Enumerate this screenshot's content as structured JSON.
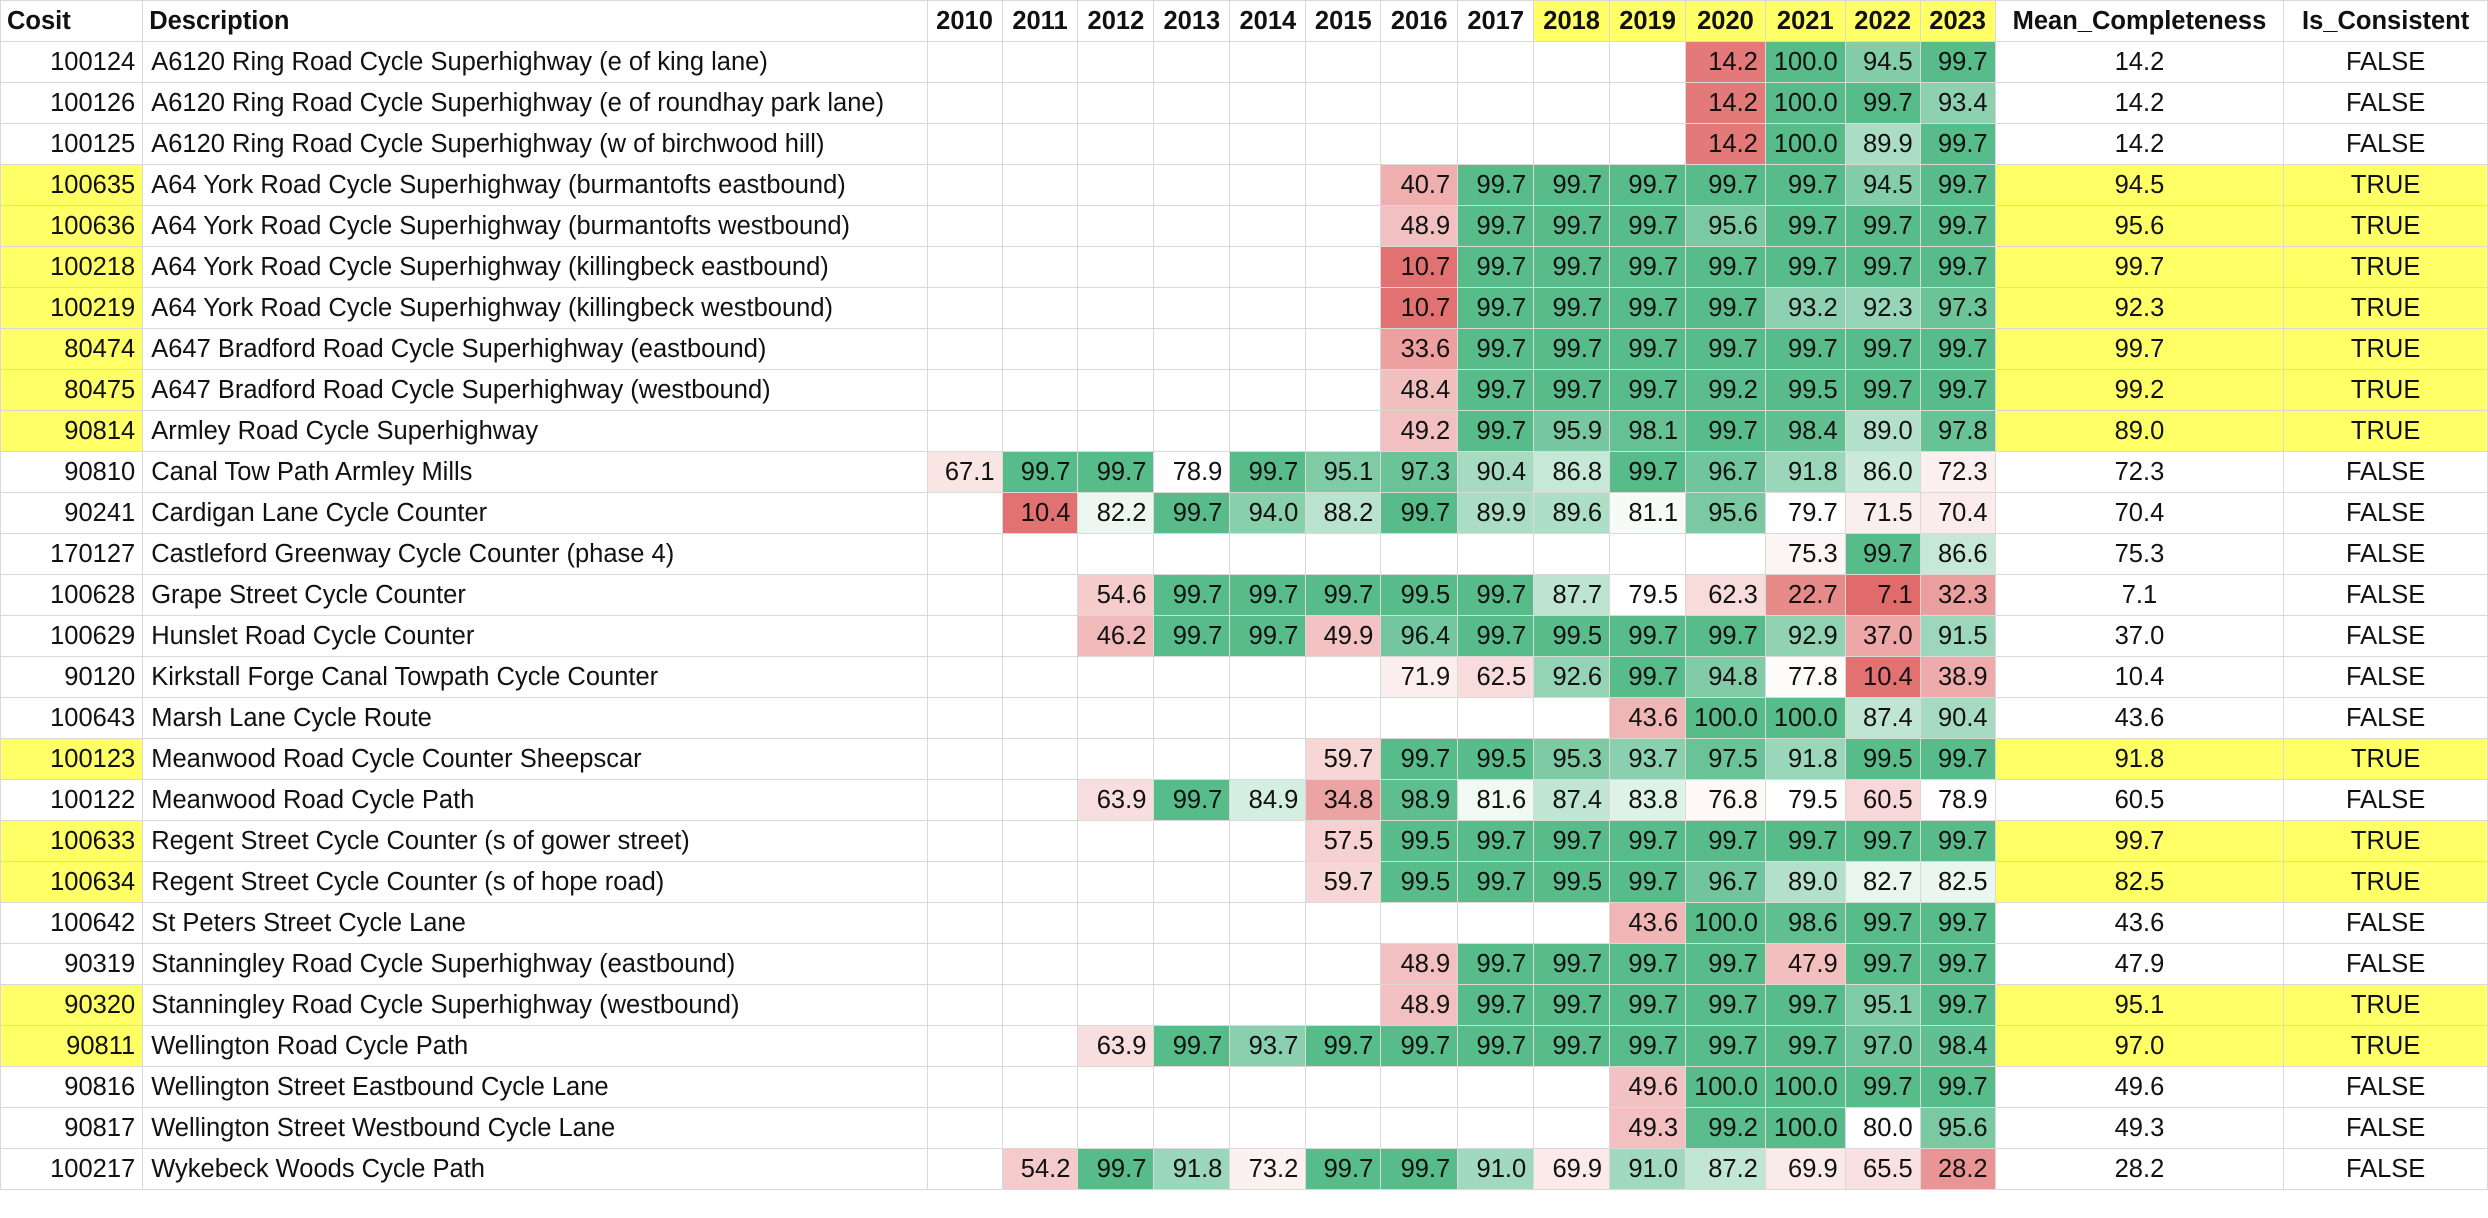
{
  "headers": [
    "Cosit",
    "Description",
    "2010",
    "2011",
    "2012",
    "2013",
    "2014",
    "2015",
    "2016",
    "2017",
    "2018",
    "2019",
    "2020",
    "2021",
    "2022",
    "2023",
    "Mean_Completeness",
    "Is_Consistent"
  ],
  "highlighted_years": [
    "2018",
    "2019",
    "2020",
    "2021",
    "2022",
    "2023"
  ],
  "colors": {
    "highlight_yellow": "#ffff66",
    "scale_low_red": "#e06666",
    "scale_mid_white": "#ffffff",
    "scale_high_green": "#57bb8a"
  },
  "rows": [
    {
      "cosit": "100124",
      "desc": "A6120 Ring Road Cycle Superhighway (e of king lane)",
      "years": [
        "",
        "",
        "",
        "",
        "",
        "",
        "",
        "",
        "",
        "",
        "14.2",
        "100.0",
        "94.5",
        "99.7"
      ],
      "mean": "14.2",
      "consistent": "FALSE"
    },
    {
      "cosit": "100126",
      "desc": "A6120 Ring Road Cycle Superhighway (e of roundhay park lane)",
      "years": [
        "",
        "",
        "",
        "",
        "",
        "",
        "",
        "",
        "",
        "",
        "14.2",
        "100.0",
        "99.7",
        "93.4"
      ],
      "mean": "14.2",
      "consistent": "FALSE"
    },
    {
      "cosit": "100125",
      "desc": "A6120 Ring Road Cycle Superhighway (w of birchwood hill)",
      "years": [
        "",
        "",
        "",
        "",
        "",
        "",
        "",
        "",
        "",
        "",
        "14.2",
        "100.0",
        "89.9",
        "99.7"
      ],
      "mean": "14.2",
      "consistent": "FALSE"
    },
    {
      "cosit": "100635",
      "desc": "A64 York Road Cycle Superhighway (burmantofts eastbound)",
      "years": [
        "",
        "",
        "",
        "",
        "",
        "",
        "40.7",
        "99.7",
        "99.7",
        "99.7",
        "99.7",
        "99.7",
        "94.5",
        "99.7"
      ],
      "mean": "94.5",
      "consistent": "TRUE"
    },
    {
      "cosit": "100636",
      "desc": "A64 York Road Cycle Superhighway (burmantofts westbound)",
      "years": [
        "",
        "",
        "",
        "",
        "",
        "",
        "48.9",
        "99.7",
        "99.7",
        "99.7",
        "95.6",
        "99.7",
        "99.7",
        "99.7"
      ],
      "mean": "95.6",
      "consistent": "TRUE"
    },
    {
      "cosit": "100218",
      "desc": "A64 York Road Cycle Superhighway (killingbeck eastbound)",
      "years": [
        "",
        "",
        "",
        "",
        "",
        "",
        "10.7",
        "99.7",
        "99.7",
        "99.7",
        "99.7",
        "99.7",
        "99.7",
        "99.7"
      ],
      "mean": "99.7",
      "consistent": "TRUE"
    },
    {
      "cosit": "100219",
      "desc": "A64 York Road Cycle Superhighway (killingbeck westbound)",
      "years": [
        "",
        "",
        "",
        "",
        "",
        "",
        "10.7",
        "99.7",
        "99.7",
        "99.7",
        "99.7",
        "93.2",
        "92.3",
        "97.3"
      ],
      "mean": "92.3",
      "consistent": "TRUE"
    },
    {
      "cosit": "80474",
      "desc": "A647 Bradford Road Cycle Superhighway (eastbound)",
      "years": [
        "",
        "",
        "",
        "",
        "",
        "",
        "33.6",
        "99.7",
        "99.7",
        "99.7",
        "99.7",
        "99.7",
        "99.7",
        "99.7"
      ],
      "mean": "99.7",
      "consistent": "TRUE"
    },
    {
      "cosit": "80475",
      "desc": "A647 Bradford Road Cycle Superhighway (westbound)",
      "years": [
        "",
        "",
        "",
        "",
        "",
        "",
        "48.4",
        "99.7",
        "99.7",
        "99.7",
        "99.2",
        "99.5",
        "99.7",
        "99.7"
      ],
      "mean": "99.2",
      "consistent": "TRUE"
    },
    {
      "cosit": "90814",
      "desc": "Armley Road Cycle Superhighway",
      "years": [
        "",
        "",
        "",
        "",
        "",
        "",
        "49.2",
        "99.7",
        "95.9",
        "98.1",
        "99.7",
        "98.4",
        "89.0",
        "97.8"
      ],
      "mean": "89.0",
      "consistent": "TRUE"
    },
    {
      "cosit": "90810",
      "desc": "Canal Tow Path Armley Mills",
      "years": [
        "67.1",
        "99.7",
        "99.7",
        "78.9",
        "99.7",
        "95.1",
        "97.3",
        "90.4",
        "86.8",
        "99.7",
        "96.7",
        "91.8",
        "86.0",
        "72.3"
      ],
      "mean": "72.3",
      "consistent": "FALSE"
    },
    {
      "cosit": "90241",
      "desc": "Cardigan Lane Cycle Counter",
      "years": [
        "",
        "10.4",
        "82.2",
        "99.7",
        "94.0",
        "88.2",
        "99.7",
        "89.9",
        "89.6",
        "81.1",
        "95.6",
        "79.7",
        "71.5",
        "70.4"
      ],
      "mean": "70.4",
      "consistent": "FALSE"
    },
    {
      "cosit": "170127",
      "desc": "Castleford Greenway Cycle Counter (phase 4)",
      "years": [
        "",
        "",
        "",
        "",
        "",
        "",
        "",
        "",
        "",
        "",
        "",
        "75.3",
        "99.7",
        "86.6"
      ],
      "mean": "75.3",
      "consistent": "FALSE"
    },
    {
      "cosit": "100628",
      "desc": "Grape Street Cycle Counter",
      "years": [
        "",
        "",
        "54.6",
        "99.7",
        "99.7",
        "99.7",
        "99.5",
        "99.7",
        "87.7",
        "79.5",
        "62.3",
        "22.7",
        "7.1",
        "32.3"
      ],
      "mean": "7.1",
      "consistent": "FALSE"
    },
    {
      "cosit": "100629",
      "desc": "Hunslet Road Cycle Counter",
      "years": [
        "",
        "",
        "46.2",
        "99.7",
        "99.7",
        "49.9",
        "96.4",
        "99.7",
        "99.5",
        "99.7",
        "99.7",
        "92.9",
        "37.0",
        "91.5"
      ],
      "mean": "37.0",
      "consistent": "FALSE"
    },
    {
      "cosit": "90120",
      "desc": "Kirkstall Forge Canal Towpath Cycle Counter",
      "years": [
        "",
        "",
        "",
        "",
        "",
        "",
        "71.9",
        "62.5",
        "92.6",
        "99.7",
        "94.8",
        "77.8",
        "10.4",
        "38.9"
      ],
      "mean": "10.4",
      "consistent": "FALSE"
    },
    {
      "cosit": "100643",
      "desc": "Marsh Lane Cycle Route",
      "years": [
        "",
        "",
        "",
        "",
        "",
        "",
        "",
        "",
        "",
        "43.6",
        "100.0",
        "100.0",
        "87.4",
        "90.4"
      ],
      "mean": "43.6",
      "consistent": "FALSE"
    },
    {
      "cosit": "100123",
      "desc": "Meanwood Road Cycle Counter Sheepscar",
      "years": [
        "",
        "",
        "",
        "",
        "",
        "59.7",
        "99.7",
        "99.5",
        "95.3",
        "93.7",
        "97.5",
        "91.8",
        "99.5",
        "99.7"
      ],
      "mean": "91.8",
      "consistent": "TRUE"
    },
    {
      "cosit": "100122",
      "desc": "Meanwood Road Cycle Path",
      "years": [
        "",
        "",
        "63.9",
        "99.7",
        "84.9",
        "34.8",
        "98.9",
        "81.6",
        "87.4",
        "83.8",
        "76.8",
        "79.5",
        "60.5",
        "78.9"
      ],
      "mean": "60.5",
      "consistent": "FALSE"
    },
    {
      "cosit": "100633",
      "desc": "Regent Street Cycle Counter (s of gower street)",
      "years": [
        "",
        "",
        "",
        "",
        "",
        "57.5",
        "99.5",
        "99.7",
        "99.7",
        "99.7",
        "99.7",
        "99.7",
        "99.7",
        "99.7"
      ],
      "mean": "99.7",
      "consistent": "TRUE"
    },
    {
      "cosit": "100634",
      "desc": "Regent Street Cycle Counter (s of hope road)",
      "years": [
        "",
        "",
        "",
        "",
        "",
        "59.7",
        "99.5",
        "99.7",
        "99.5",
        "99.7",
        "96.7",
        "89.0",
        "82.7",
        "82.5"
      ],
      "mean": "82.5",
      "consistent": "TRUE"
    },
    {
      "cosit": "100642",
      "desc": "St Peters Street Cycle Lane",
      "years": [
        "",
        "",
        "",
        "",
        "",
        "",
        "",
        "",
        "",
        "43.6",
        "100.0",
        "98.6",
        "99.7",
        "99.7"
      ],
      "mean": "43.6",
      "consistent": "FALSE"
    },
    {
      "cosit": "90319",
      "desc": "Stanningley Road Cycle Superhighway (eastbound)",
      "years": [
        "",
        "",
        "",
        "",
        "",
        "",
        "48.9",
        "99.7",
        "99.7",
        "99.7",
        "99.7",
        "47.9",
        "99.7",
        "99.7"
      ],
      "mean": "47.9",
      "consistent": "FALSE"
    },
    {
      "cosit": "90320",
      "desc": "Stanningley Road Cycle Superhighway (westbound)",
      "years": [
        "",
        "",
        "",
        "",
        "",
        "",
        "48.9",
        "99.7",
        "99.7",
        "99.7",
        "99.7",
        "99.7",
        "95.1",
        "99.7"
      ],
      "mean": "95.1",
      "consistent": "TRUE"
    },
    {
      "cosit": "90811",
      "desc": "Wellington Road Cycle Path",
      "years": [
        "",
        "",
        "63.9",
        "99.7",
        "93.7",
        "99.7",
        "99.7",
        "99.7",
        "99.7",
        "99.7",
        "99.7",
        "99.7",
        "97.0",
        "98.4"
      ],
      "mean": "97.0",
      "consistent": "TRUE"
    },
    {
      "cosit": "90816",
      "desc": "Wellington Street Eastbound Cycle Lane",
      "years": [
        "",
        "",
        "",
        "",
        "",
        "",
        "",
        "",
        "",
        "49.6",
        "100.0",
        "100.0",
        "99.7",
        "99.7"
      ],
      "mean": "49.6",
      "consistent": "FALSE"
    },
    {
      "cosit": "90817",
      "desc": "Wellington Street Westbound Cycle Lane",
      "years": [
        "",
        "",
        "",
        "",
        "",
        "",
        "",
        "",
        "",
        "49.3",
        "99.2",
        "100.0",
        "80.0",
        "95.6"
      ],
      "mean": "49.3",
      "consistent": "FALSE"
    },
    {
      "cosit": "100217",
      "desc": "Wykebeck Woods Cycle Path",
      "years": [
        "",
        "54.2",
        "99.7",
        "91.8",
        "73.2",
        "99.7",
        "99.7",
        "91.0",
        "69.9",
        "91.0",
        "87.2",
        "69.9",
        "65.5",
        "28.2"
      ],
      "mean": "28.2",
      "consistent": "FALSE"
    }
  ]
}
